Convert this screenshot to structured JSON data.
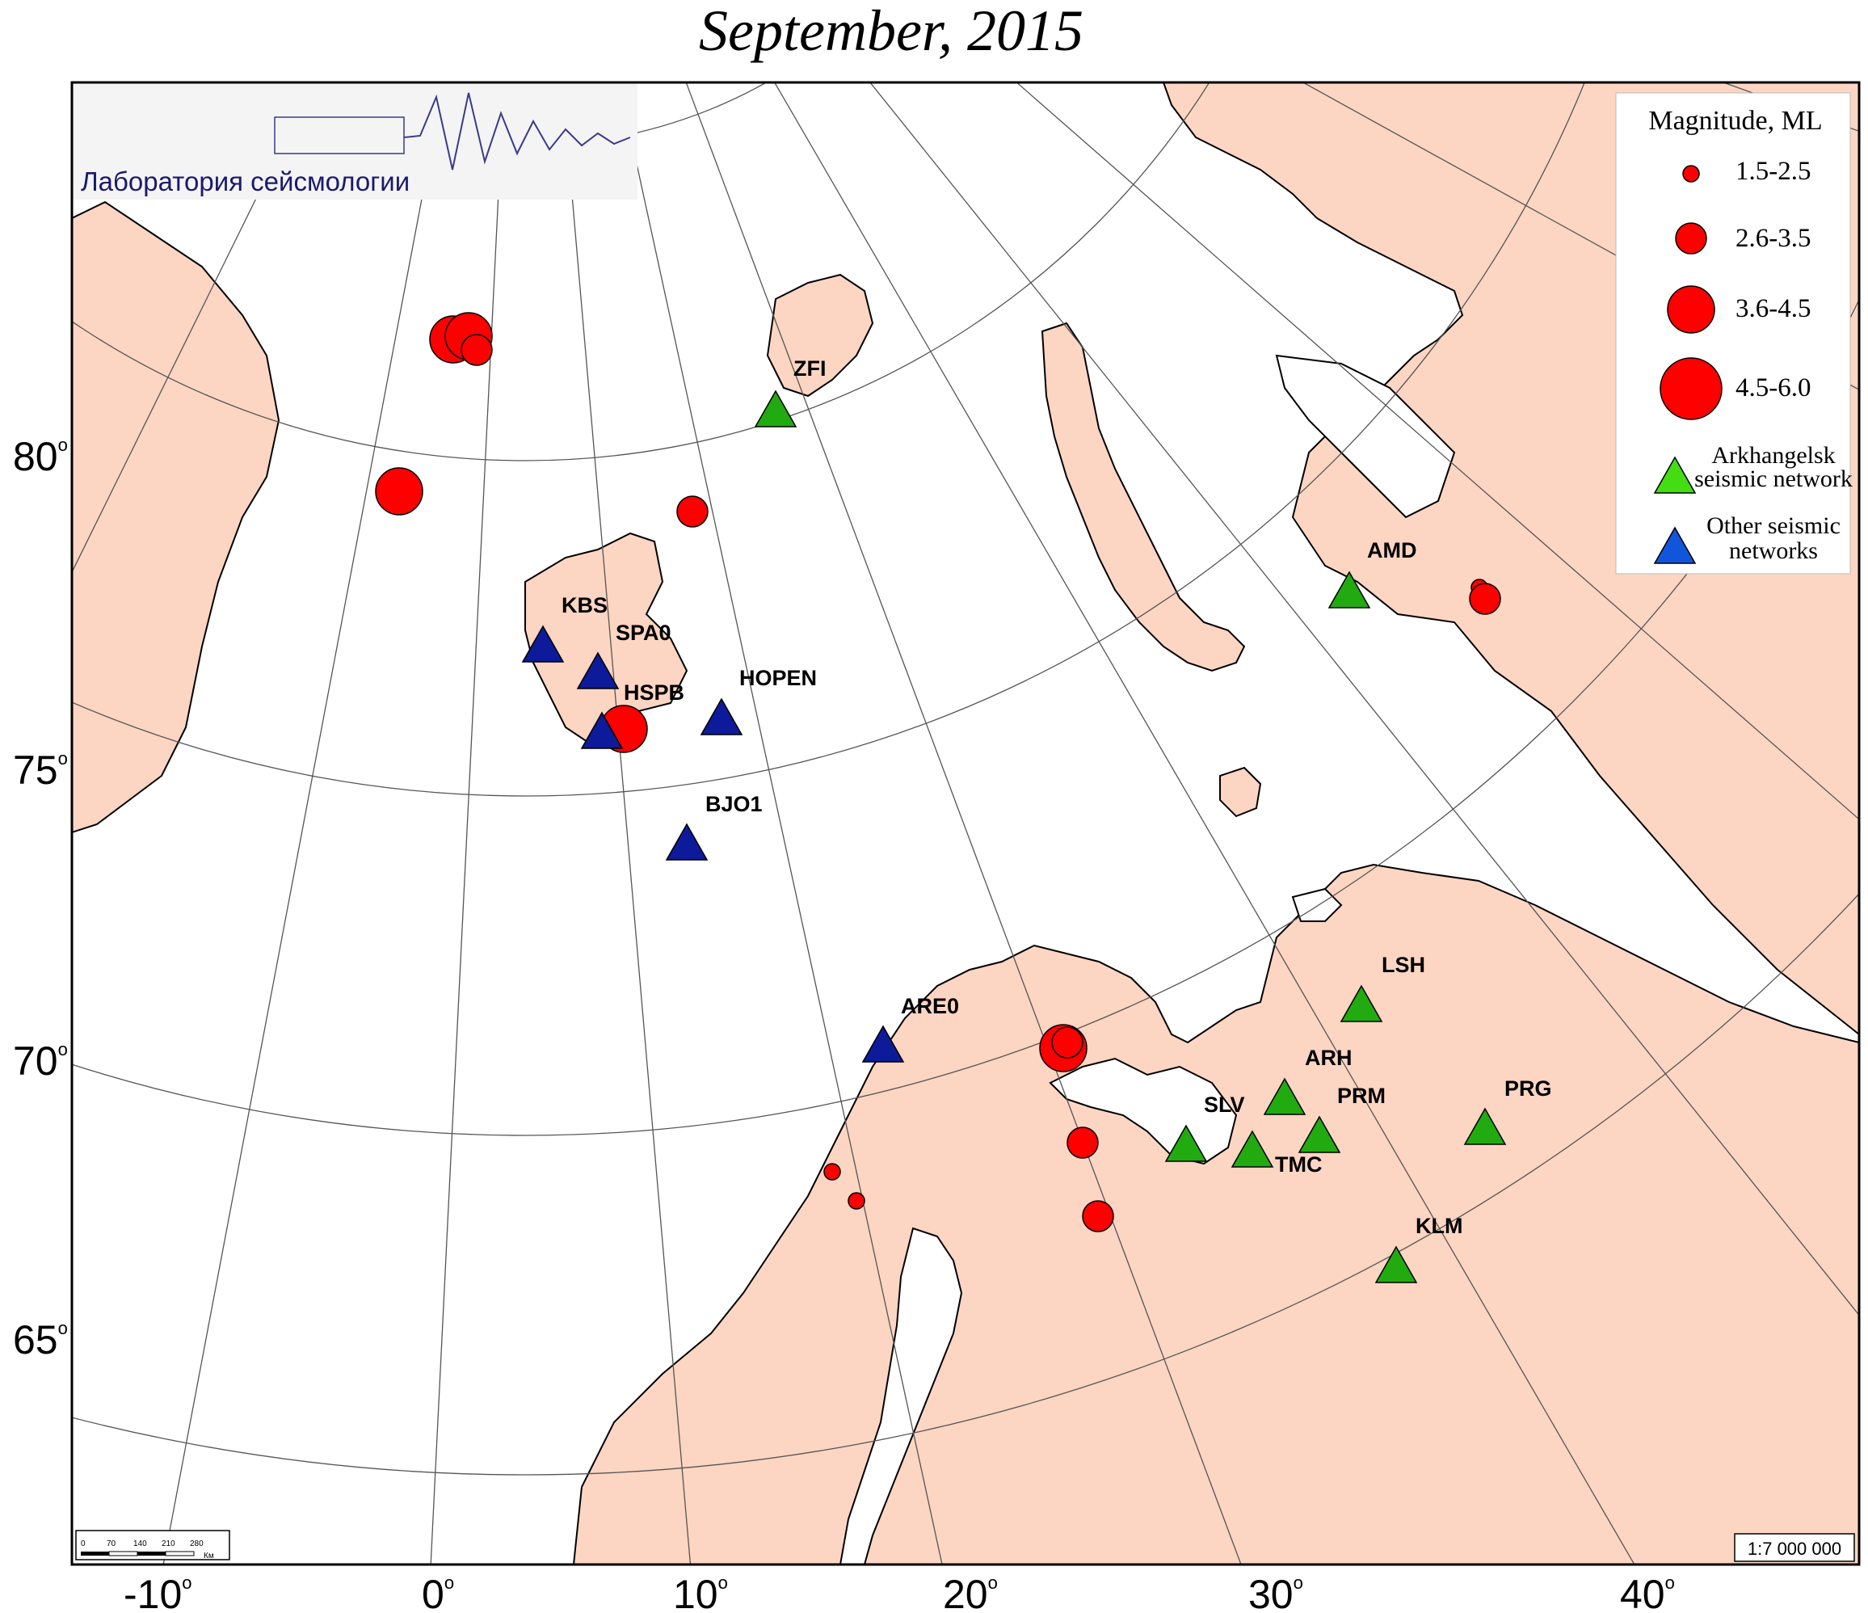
{
  "title": "September, 2015",
  "logo": {
    "text": "Лаборатория сейсмологии"
  },
  "legend": {
    "heading": "Magnitude, ML",
    "magnitude_classes": [
      "1.5-2.5",
      "2.6-3.5",
      "3.6-4.5",
      "4.5-6.0"
    ],
    "arkhangelsk_label_1": "Arkhangelsk",
    "arkhangelsk_label_2": "seismic network",
    "other_label_1": "Other seismic",
    "other_label_2": "networks"
  },
  "scale": {
    "ratio": "1:7 000 000",
    "ticks": [
      "0",
      "70",
      "140",
      "210",
      "280"
    ],
    "unit": "Км"
  },
  "latitude_labels": [
    "80",
    "75",
    "70",
    "65"
  ],
  "longitude_labels": [
    "-10",
    "0",
    "10",
    "20",
    "30",
    "40"
  ],
  "colors": {
    "land": "#fcd5c3",
    "water": "#ffffff",
    "event": "#ff0000",
    "arkhangelsk": "#22aa11",
    "other": "#0d1a99",
    "grid": "#555555"
  },
  "stations": [
    {
      "code": "ZFI",
      "network": "arkhangelsk"
    },
    {
      "code": "AMD",
      "network": "arkhangelsk"
    },
    {
      "code": "LSH",
      "network": "arkhangelsk"
    },
    {
      "code": "ARH",
      "network": "arkhangelsk"
    },
    {
      "code": "PRM",
      "network": "arkhangelsk"
    },
    {
      "code": "SLV",
      "network": "arkhangelsk"
    },
    {
      "code": "TMC",
      "network": "arkhangelsk"
    },
    {
      "code": "PRG",
      "network": "arkhangelsk"
    },
    {
      "code": "KLM",
      "network": "arkhangelsk"
    },
    {
      "code": "KBS",
      "network": "other"
    },
    {
      "code": "SPA0",
      "network": "other"
    },
    {
      "code": "HSPB",
      "network": "other"
    },
    {
      "code": "HOPEN",
      "network": "other"
    },
    {
      "code": "BJO1",
      "network": "other"
    },
    {
      "code": "ARE0",
      "network": "other"
    }
  ]
}
